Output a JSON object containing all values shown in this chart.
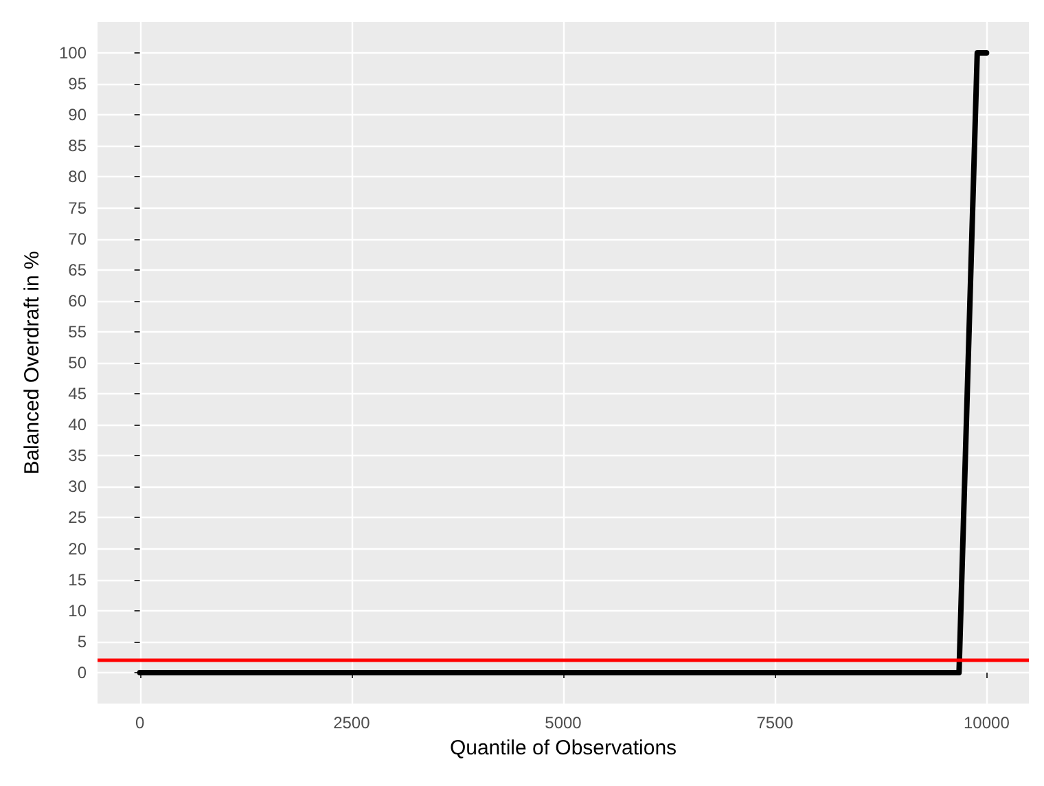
{
  "chart_data": {
    "type": "line",
    "xlabel": "Quantile of Observations",
    "ylabel": "Balanced Overdraft in %",
    "x": [
      0,
      9675,
      9890,
      10000
    ],
    "series": [
      {
        "color": "#000000",
        "values": [
          0,
          0,
          100,
          100
        ]
      }
    ],
    "xlim": [
      -500,
      10500
    ],
    "xticks": [
      0,
      2500,
      5000,
      7500,
      10000
    ],
    "ylim": [
      -5,
      105
    ],
    "yticks": [
      0,
      5,
      10,
      15,
      20,
      25,
      30,
      35,
      40,
      45,
      50,
      55,
      60,
      65,
      70,
      75,
      80,
      85,
      90,
      95,
      100
    ],
    "grid": true,
    "marker": "none",
    "line_style": "solid",
    "ref_lines": [
      {
        "axis": "y",
        "value": 2,
        "color": "#ff0000"
      }
    ]
  }
}
